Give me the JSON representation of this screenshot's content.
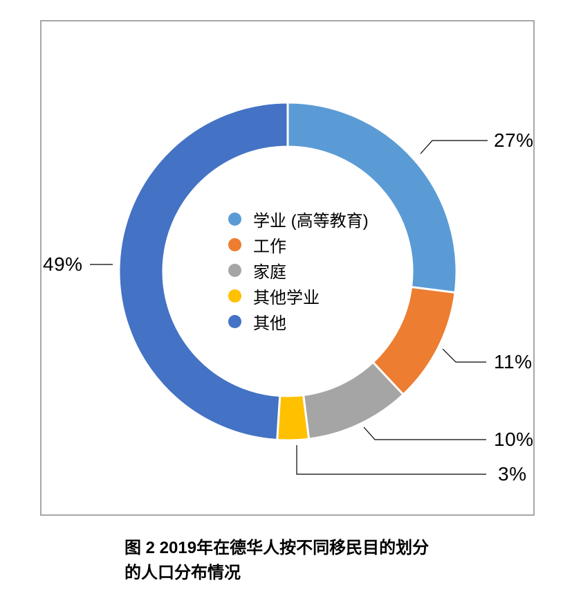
{
  "chart_data": {
    "type": "pie",
    "subtype": "donut",
    "title": "",
    "categories": [
      "学业 (高等教育)",
      "工作",
      "家庭",
      "其他学业",
      "其他"
    ],
    "values": [
      27,
      11,
      10,
      3,
      49
    ],
    "unit": "%",
    "colors": [
      "#5B9BD5",
      "#ED7D31",
      "#A5A5A5",
      "#FFC000",
      "#4472C4"
    ],
    "data_labels": [
      "27%",
      "11%",
      "10%",
      "3%",
      "49%"
    ],
    "start_angle_deg": 0,
    "direction": "clockwise",
    "hole_ratio": 0.74,
    "legend_position": "center",
    "slice_separator_color": "#FFFFFF"
  },
  "legend": {
    "items": [
      {
        "label": "学业 (高等教育)",
        "color": "#5B9BD5"
      },
      {
        "label": "工作",
        "color": "#ED7D31"
      },
      {
        "label": "家庭",
        "color": "#A5A5A5"
      },
      {
        "label": "其他学业",
        "color": "#FFC000"
      },
      {
        "label": "其他",
        "color": "#4472C4"
      }
    ]
  },
  "caption": {
    "line1": "图 2 2019年在德华人按不同移民目的划分",
    "line2": "的人口分布情况"
  }
}
